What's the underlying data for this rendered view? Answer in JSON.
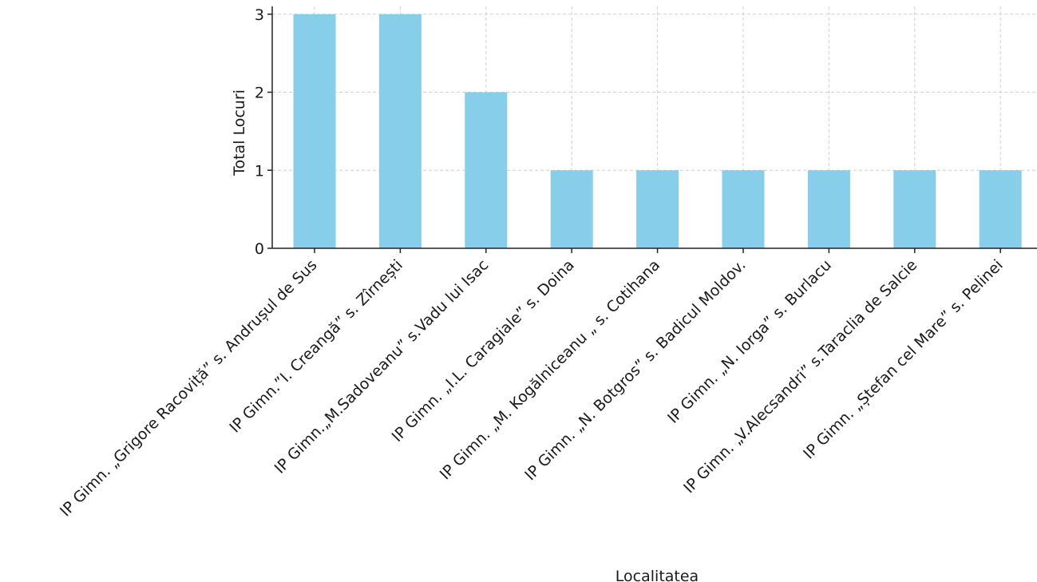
{
  "chart_data": {
    "type": "bar",
    "title": "",
    "xlabel": "Localitatea",
    "ylabel": "Total Locuri",
    "categories": [
      "IP Gimn. „Grigore Racoviță” s. Andrușul de Sus",
      "IP Gimn.”I. Creangă” s. Zîrnești",
      "IP Gimn.„M.Sadoveanu” s.Vadu lui Isac",
      "IP Gimn. „I.L. Caragiale” s. Doina",
      "IP Gimn. „M. Kogălniceanu „ s. Cotihana",
      "IP Gimn. „N. Botgros” s. Badicul Moldov.",
      "IP Gimn. „N. Iorga” s. Burlacu",
      "IP Gimn. „V.Alecsandri” s.Taraclia de Salcie",
      "IP Gimn. „Ștefan cel Mare” s. Pelinei"
    ],
    "values": [
      3,
      3,
      2,
      1,
      1,
      1,
      1,
      1,
      1
    ],
    "ylim": [
      0,
      3.1
    ],
    "yticks": [
      "0",
      "1",
      "2",
      "3"
    ],
    "grid": true,
    "legend": "none",
    "bar_color": "#87CEEB"
  }
}
